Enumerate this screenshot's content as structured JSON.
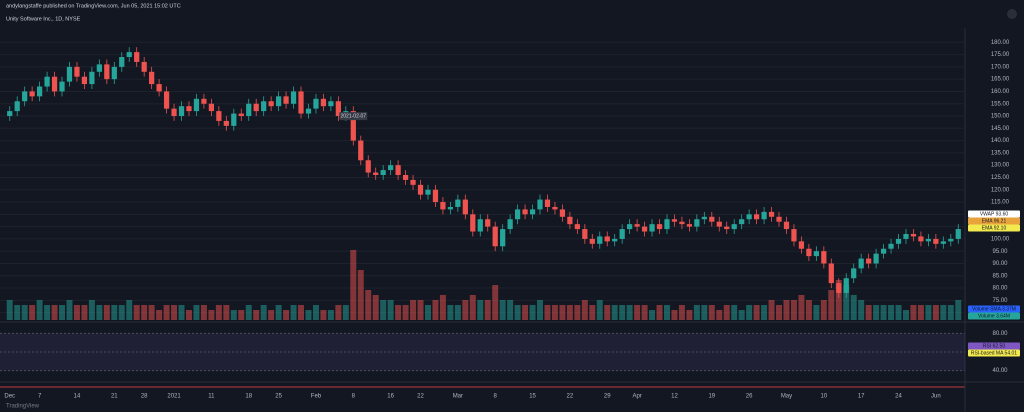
{
  "chart_data": {
    "type": "candlestick",
    "header": "andylangstaffe published on TradingView.com, Jun 05, 2021 15:02 UTC",
    "title": "Unity Software Inc., 1D, NYSE",
    "annotation": "2021-02-07",
    "watermark": "TradingView",
    "up_color": "#26a69a",
    "down_color": "#ef5350",
    "categories": [
      "Dec",
      null,
      null,
      null,
      "7",
      null,
      null,
      null,
      null,
      "14",
      null,
      null,
      null,
      null,
      "21",
      null,
      null,
      null,
      "28",
      null,
      null,
      null,
      "2021",
      null,
      null,
      null,
      null,
      "11",
      null,
      null,
      null,
      null,
      "18",
      null,
      null,
      null,
      "25",
      null,
      null,
      null,
      null,
      "Feb",
      null,
      null,
      null,
      null,
      "8",
      null,
      null,
      null,
      null,
      "16",
      null,
      null,
      null,
      "22",
      null,
      null,
      null,
      null,
      "Mar",
      null,
      null,
      null,
      null,
      "8",
      null,
      null,
      null,
      null,
      "15",
      null,
      null,
      null,
      null,
      "22",
      null,
      null,
      null,
      null,
      "29",
      null,
      null,
      null,
      "Apr",
      null,
      null,
      null,
      null,
      "12",
      null,
      null,
      null,
      null,
      "19",
      null,
      null,
      null,
      null,
      "26",
      null,
      null,
      null,
      null,
      "May",
      null,
      null,
      null,
      null,
      "10",
      null,
      null,
      null,
      null,
      "17",
      null,
      null,
      null,
      null,
      "24",
      null,
      null,
      null,
      null,
      "Jun",
      null,
      null,
      null
    ],
    "open": [
      150,
      152,
      156,
      160,
      158,
      162,
      166,
      160,
      164,
      170,
      166,
      163,
      168,
      171,
      165,
      170,
      174,
      176,
      172,
      168,
      163,
      160,
      153,
      150,
      154,
      152,
      157,
      155,
      152,
      148,
      146,
      151,
      150,
      155,
      152,
      156,
      154,
      158,
      155,
      160,
      151,
      153,
      157,
      154,
      156,
      150,
      152,
      140,
      132,
      127,
      126,
      128,
      130,
      126,
      124,
      122,
      118,
      120,
      115,
      112,
      113,
      116,
      110,
      103,
      108,
      105,
      97,
      104,
      108,
      112,
      110,
      112,
      116,
      113,
      112,
      109,
      106,
      104,
      100,
      98,
      101,
      99,
      100,
      104,
      106,
      105,
      103,
      106,
      104,
      108,
      107,
      106,
      105,
      108,
      109,
      107,
      105,
      104,
      106,
      108,
      110,
      108,
      111,
      109,
      107,
      104,
      99,
      96,
      93,
      95,
      90,
      82,
      78,
      84,
      88,
      92,
      90,
      94,
      96,
      98,
      100,
      102,
      101,
      99,
      100,
      98,
      99,
      100
    ],
    "high": [
      154,
      158,
      162,
      162,
      164,
      168,
      168,
      166,
      172,
      172,
      168,
      170,
      173,
      173,
      172,
      176,
      178,
      178,
      174,
      170,
      165,
      162,
      155,
      156,
      156,
      159,
      159,
      157,
      154,
      150,
      153,
      153,
      157,
      157,
      158,
      158,
      160,
      160,
      162,
      162,
      155,
      159,
      159,
      158,
      158,
      154,
      154,
      142,
      134,
      129,
      130,
      132,
      132,
      128,
      126,
      124,
      122,
      122,
      117,
      115,
      118,
      118,
      112,
      110,
      110,
      107,
      106,
      110,
      114,
      114,
      114,
      118,
      118,
      115,
      114,
      111,
      108,
      106,
      102,
      103,
      103,
      102,
      106,
      108,
      108,
      107,
      108,
      108,
      110,
      110,
      109,
      108,
      110,
      111,
      111,
      109,
      107,
      108,
      110,
      112,
      112,
      113,
      113,
      111,
      109,
      106,
      101,
      98,
      97,
      97,
      92,
      84,
      86,
      90,
      94,
      94,
      96,
      98,
      100,
      102,
      104,
      104,
      103,
      102,
      102,
      101,
      102,
      106
    ],
    "low": [
      148,
      150,
      154,
      156,
      156,
      160,
      158,
      158,
      162,
      164,
      161,
      161,
      166,
      163,
      163,
      168,
      172,
      170,
      166,
      161,
      158,
      151,
      148,
      148,
      150,
      150,
      153,
      150,
      146,
      144,
      144,
      148,
      148,
      150,
      150,
      152,
      152,
      153,
      153,
      149,
      149,
      151,
      152,
      152,
      148,
      148,
      138,
      130,
      125,
      124,
      124,
      126,
      124,
      122,
      120,
      116,
      116,
      113,
      110,
      110,
      111,
      108,
      101,
      101,
      103,
      95,
      95,
      102,
      106,
      108,
      108,
      110,
      111,
      110,
      107,
      104,
      102,
      98,
      96,
      96,
      97,
      97,
      98,
      102,
      103,
      101,
      101,
      102,
      102,
      105,
      104,
      103,
      103,
      106,
      105,
      103,
      102,
      102,
      104,
      106,
      106,
      106,
      107,
      105,
      102,
      97,
      94,
      91,
      91,
      88,
      80,
      76,
      76,
      82,
      86,
      88,
      88,
      92,
      94,
      96,
      98,
      99,
      97,
      97,
      96,
      96,
      97,
      98
    ],
    "close": [
      152,
      156,
      160,
      158,
      162,
      166,
      160,
      164,
      170,
      166,
      163,
      168,
      171,
      165,
      170,
      174,
      176,
      172,
      168,
      163,
      160,
      153,
      150,
      154,
      152,
      157,
      155,
      152,
      148,
      146,
      151,
      150,
      155,
      152,
      156,
      154,
      158,
      155,
      160,
      151,
      153,
      157,
      154,
      156,
      150,
      152,
      140,
      132,
      127,
      126,
      128,
      130,
      126,
      124,
      122,
      118,
      120,
      115,
      112,
      113,
      116,
      110,
      103,
      108,
      105,
      97,
      104,
      108,
      112,
      110,
      112,
      116,
      113,
      112,
      109,
      106,
      104,
      100,
      98,
      101,
      99,
      100,
      104,
      106,
      105,
      103,
      106,
      104,
      108,
      107,
      106,
      105,
      108,
      109,
      107,
      105,
      104,
      106,
      108,
      110,
      108,
      111,
      109,
      107,
      104,
      99,
      96,
      93,
      95,
      90,
      82,
      78,
      84,
      88,
      92,
      90,
      94,
      96,
      98,
      100,
      102,
      101,
      99,
      100,
      98,
      99,
      100,
      104
    ],
    "volume": [
      4,
      3,
      3,
      3,
      4,
      3,
      3,
      3,
      4,
      3,
      3,
      4,
      3,
      3,
      3,
      3,
      4,
      3,
      3,
      3,
      2,
      3,
      3,
      3,
      2,
      3,
      3,
      2,
      3,
      3,
      2,
      2,
      3,
      2,
      3,
      2,
      3,
      2,
      3,
      3,
      2,
      3,
      2,
      2,
      3,
      3,
      14,
      10,
      6,
      5,
      4,
      4,
      3,
      3,
      4,
      4,
      3,
      4,
      5,
      3,
      3,
      4,
      5,
      4,
      4,
      7,
      4,
      4,
      3,
      3,
      3,
      4,
      3,
      3,
      3,
      3,
      3,
      4,
      3,
      4,
      3,
      3,
      3,
      3,
      3,
      3,
      2,
      3,
      3,
      2,
      3,
      2,
      3,
      3,
      3,
      2,
      3,
      3,
      2,
      3,
      3,
      3,
      4,
      3,
      4,
      4,
      5,
      4,
      3,
      4,
      6,
      8,
      7,
      5,
      4,
      3,
      3,
      3,
      3,
      3,
      2,
      3,
      3,
      3,
      3,
      3,
      3,
      4
    ],
    "ylim": [
      67,
      185
    ],
    "yticks": [
      {
        "value": 180,
        "label": "180.00"
      },
      {
        "value": 175,
        "label": "175.00"
      },
      {
        "value": 170,
        "label": "170.00"
      },
      {
        "value": 165,
        "label": "165.00"
      },
      {
        "value": 160,
        "label": "160.00"
      },
      {
        "value": 155,
        "label": "155.00"
      },
      {
        "value": 150,
        "label": "150.00"
      },
      {
        "value": 145,
        "label": "145.00"
      },
      {
        "value": 140,
        "label": "140.00"
      },
      {
        "value": 135,
        "label": "135.00"
      },
      {
        "value": 130,
        "label": "130.00"
      },
      {
        "value": 125,
        "label": "125.00"
      },
      {
        "value": 120,
        "label": "120.00"
      },
      {
        "value": 115,
        "label": "115.00"
      },
      {
        "value": 110,
        "label": "110.00"
      },
      {
        "value": 105,
        "label": "105.00"
      },
      {
        "value": 100,
        "label": "100.00"
      },
      {
        "value": 95,
        "label": "95.00"
      },
      {
        "value": 90,
        "label": "90.00"
      },
      {
        "value": 85,
        "label": "85.00"
      },
      {
        "value": 80,
        "label": "80.00"
      },
      {
        "value": 75,
        "label": "75.00"
      },
      {
        "value": 70,
        "label": "70.00"
      }
    ],
    "volume_ylim": [
      0,
      16
    ],
    "rsi_ylim": [
      30,
      90
    ],
    "rsi_yticks": [
      {
        "value": 80,
        "label": "80.00"
      },
      {
        "value": 60,
        "label": "60.00"
      },
      {
        "value": 40,
        "label": "40.00"
      }
    ],
    "right_labels": [
      {
        "text": "VWAP 93.60",
        "color": "#ffffff"
      },
      {
        "text": "EMA 96.21",
        "color": "#e8a33c"
      },
      {
        "text": "EMA 92.10",
        "color": "#f2e94e"
      },
      {
        "text": "Volume SMA 3.37M",
        "color": "#2962ff"
      },
      {
        "text": "Volume 3.64M",
        "color": "#26a69a"
      },
      {
        "text": "RSI 62.50",
        "color": "#7e57c2"
      },
      {
        "text": "RSI-based MA 54.01",
        "color": "#f2e94e"
      }
    ]
  }
}
